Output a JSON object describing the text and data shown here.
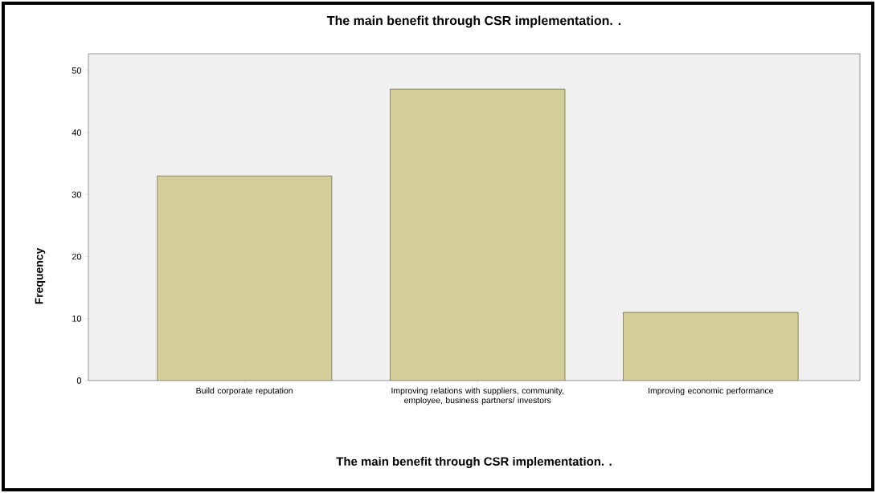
{
  "chart_data": {
    "type": "bar",
    "title": "The main benefit  through CSR implementation. .",
    "xlabel": "The main benefit  through CSR implementation. .",
    "ylabel": "Frequency",
    "categories": [
      "Build corporate reputation",
      "Improving relations with suppliers, community, employee, business partners/ investors",
      "Improving economic performance"
    ],
    "values": [
      33,
      47,
      11
    ],
    "color": "#d3ce97",
    "ylim": [
      0,
      52.7
    ],
    "yticks": [
      0,
      10,
      20,
      30,
      40,
      50
    ],
    "grid": false
  }
}
